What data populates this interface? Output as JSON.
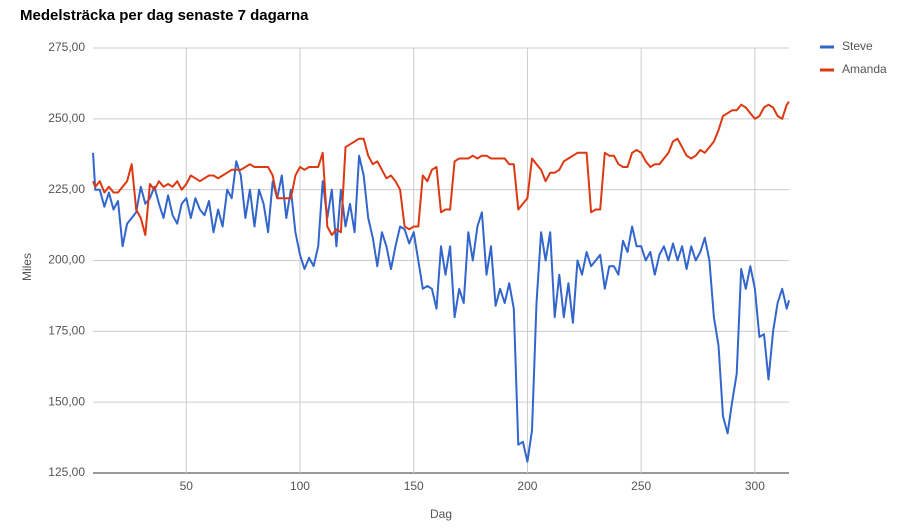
{
  "chart_data": {
    "type": "line",
    "title": "Medelsträcka per dag senaste 7 dagarna",
    "xlabel": "Dag",
    "ylabel": "Miles",
    "xlim": [
      9,
      315
    ],
    "xticks": [
      50,
      100,
      150,
      200,
      250,
      300
    ],
    "ylim": [
      125,
      275
    ],
    "yticks": [
      {
        "value": 125,
        "label": "125,00"
      },
      {
        "value": 150,
        "label": "150,00"
      },
      {
        "value": 175,
        "label": "175,00"
      },
      {
        "value": 200,
        "label": "200,00"
      },
      {
        "value": 225,
        "label": "225,00"
      },
      {
        "value": 250,
        "label": "250,00"
      },
      {
        "value": 275,
        "label": "275,00"
      }
    ],
    "grid": true,
    "legend": "right",
    "x": [
      9,
      10,
      12,
      14,
      16,
      18,
      20,
      22,
      24,
      26,
      28,
      30,
      32,
      34,
      36,
      38,
      40,
      42,
      44,
      46,
      48,
      50,
      52,
      54,
      56,
      58,
      60,
      62,
      64,
      66,
      68,
      70,
      72,
      74,
      76,
      78,
      80,
      82,
      84,
      86,
      88,
      90,
      92,
      94,
      96,
      98,
      100,
      102,
      104,
      106,
      108,
      110,
      112,
      114,
      116,
      118,
      120,
      122,
      124,
      126,
      128,
      130,
      132,
      134,
      136,
      138,
      140,
      142,
      144,
      146,
      148,
      150,
      152,
      154,
      156,
      158,
      160,
      162,
      164,
      166,
      168,
      170,
      172,
      174,
      176,
      178,
      180,
      182,
      184,
      186,
      188,
      190,
      192,
      194,
      196,
      198,
      200,
      202,
      204,
      206,
      208,
      210,
      212,
      214,
      216,
      218,
      220,
      222,
      224,
      226,
      228,
      230,
      232,
      234,
      236,
      238,
      240,
      242,
      244,
      246,
      248,
      250,
      252,
      254,
      256,
      258,
      260,
      262,
      264,
      266,
      268,
      270,
      272,
      274,
      276,
      278,
      280,
      282,
      284,
      286,
      288,
      290,
      292,
      294,
      296,
      298,
      300,
      302,
      304,
      306,
      308,
      310,
      312,
      314,
      315
    ],
    "series": [
      {
        "name": "Steve",
        "color": "#3366cc",
        "values": [
          238,
          225,
          225,
          219,
          224,
          218,
          221,
          205,
          213,
          215,
          217,
          226,
          220,
          222,
          226,
          220,
          215,
          223,
          216,
          213,
          220,
          222,
          215,
          222,
          218,
          216,
          221,
          210,
          218,
          212,
          225,
          222,
          235,
          230,
          215,
          225,
          212,
          225,
          220,
          210,
          228,
          222,
          230,
          215,
          225,
          210,
          202,
          197,
          201,
          198,
          205,
          228,
          215,
          225,
          205,
          225,
          212,
          220,
          210,
          237,
          230,
          215,
          208,
          198,
          210,
          205,
          197,
          205,
          212,
          211,
          206,
          210,
          200,
          190,
          191,
          190,
          183,
          205,
          195,
          205,
          180,
          190,
          185,
          210,
          200,
          212,
          217,
          195,
          205,
          184,
          190,
          185,
          192,
          183,
          135,
          136,
          129,
          140,
          185,
          210,
          200,
          210,
          180,
          195,
          180,
          192,
          178,
          200,
          195,
          203,
          198,
          200,
          202,
          190,
          198,
          198,
          195,
          207,
          203,
          212,
          205,
          205,
          200,
          203,
          195,
          202,
          205,
          200,
          206,
          200,
          205,
          197,
          205,
          200,
          203,
          208,
          200,
          180,
          170,
          145,
          139,
          150,
          160,
          197,
          190,
          198,
          190,
          173,
          174,
          158,
          175,
          185,
          190,
          183,
          186
        ]
      },
      {
        "name": "Amanda",
        "color": "#dc3912",
        "values": [
          228,
          226,
          228,
          224,
          226,
          224,
          224,
          226,
          228,
          234,
          218,
          215,
          209,
          227,
          225,
          228,
          226,
          227,
          226,
          228,
          225,
          227,
          230,
          229,
          228,
          229,
          230,
          230,
          229,
          230,
          231,
          232,
          232,
          232,
          233,
          234,
          233,
          233,
          233,
          233,
          230,
          222,
          222,
          222,
          222,
          230,
          233,
          232,
          233,
          233,
          233,
          238,
          212,
          209,
          211,
          210,
          240,
          241,
          242,
          243,
          243,
          237,
          234,
          235,
          232,
          229,
          230,
          228,
          225,
          212,
          211,
          212,
          212,
          230,
          228,
          232,
          233,
          217,
          218,
          218,
          235,
          236,
          236,
          236,
          237,
          236,
          237,
          237,
          236,
          236,
          236,
          236,
          234,
          234,
          218,
          220,
          222,
          236,
          234,
          232,
          228,
          231,
          231,
          232,
          235,
          236,
          237,
          238,
          238,
          238,
          217,
          218,
          218,
          238,
          237,
          237,
          234,
          233,
          233,
          238,
          239,
          238,
          235,
          233,
          234,
          234,
          236,
          238,
          242,
          243,
          240,
          237,
          236,
          237,
          239,
          238,
          240,
          242,
          246,
          251,
          252,
          253,
          253,
          255,
          254,
          252,
          250,
          251,
          254,
          255,
          254,
          251,
          250,
          255,
          256
        ]
      }
    ]
  }
}
